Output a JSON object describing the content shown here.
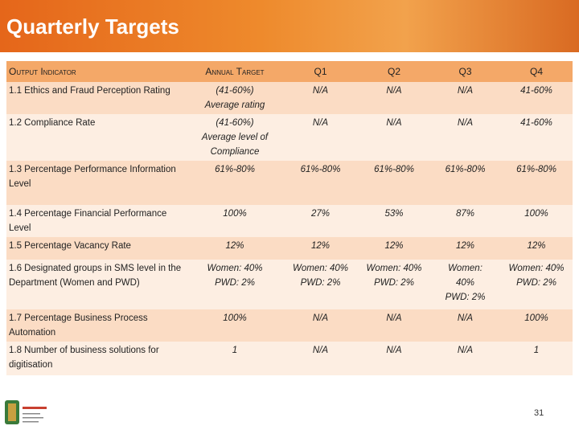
{
  "header": {
    "title": "Quarterly Targets"
  },
  "table": {
    "columns": [
      "Output Indicator",
      "Annual Target",
      "Q1",
      "Q2",
      "Q3",
      "Q4"
    ],
    "rows": [
      [
        "1.1 Ethics and Fraud Perception Rating",
        "(41-60%)\nAverage rating",
        "N/A",
        "N/A",
        "N/A",
        "41-60%"
      ],
      [
        "1.2 Compliance Rate",
        "(41-60%)\nAverage level of Compliance",
        "N/A",
        "N/A",
        "N/A",
        "41-60%"
      ],
      [
        "1.3 Percentage Performance Information Level",
        "61%-80%",
        "61%-80%",
        "61%-80%",
        "61%-80%",
        "61%-80%"
      ],
      [
        "1.4 Percentage Financial Performance Level",
        "100%",
        "27%",
        "53%",
        "87%",
        "100%"
      ],
      [
        "1.5 Percentage Vacancy Rate",
        "12%",
        "12%",
        "12%",
        "12%",
        "12%"
      ],
      [
        "1.6 Designated groups in SMS level in the Department (Women and PWD)",
        "Women: 40%\nPWD: 2%",
        "Women: 40%\nPWD: 2%",
        "Women: 40%\nPWD: 2%",
        "Women:\n40%\nPWD: 2%",
        "Women: 40%\nPWD: 2%"
      ],
      [
        "1.7 Percentage Business Process Automation",
        "100%",
        "N/A",
        "N/A",
        "N/A",
        "100%"
      ],
      [
        "1.8 Number of business solutions for digitisation",
        "1",
        "N/A",
        "N/A",
        "N/A",
        "1"
      ]
    ]
  },
  "footer": {
    "page": "31"
  }
}
